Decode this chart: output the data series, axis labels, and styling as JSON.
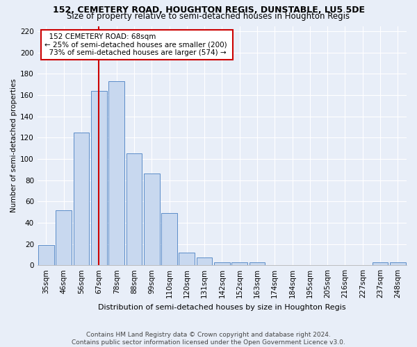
{
  "title1": "152, CEMETERY ROAD, HOUGHTON REGIS, DUNSTABLE, LU5 5DE",
  "title2": "Size of property relative to semi-detached houses in Houghton Regis",
  "xlabel": "Distribution of semi-detached houses by size in Houghton Regis",
  "ylabel": "Number of semi-detached properties",
  "footnote": "Contains HM Land Registry data © Crown copyright and database right 2024.\nContains public sector information licensed under the Open Government Licence v3.0.",
  "bar_labels": [
    "35sqm",
    "46sqm",
    "56sqm",
    "67sqm",
    "78sqm",
    "88sqm",
    "99sqm",
    "110sqm",
    "120sqm",
    "131sqm",
    "142sqm",
    "152sqm",
    "163sqm",
    "174sqm",
    "184sqm",
    "195sqm",
    "205sqm",
    "216sqm",
    "227sqm",
    "237sqm",
    "248sqm"
  ],
  "bar_values": [
    19,
    52,
    125,
    164,
    173,
    105,
    86,
    49,
    12,
    7,
    3,
    3,
    3,
    0,
    0,
    0,
    0,
    0,
    0,
    3,
    3
  ],
  "bar_color": "#c8d8ef",
  "bar_edge_color": "#5b8cc8",
  "property_label": "152 CEMETERY ROAD: 68sqm",
  "smaller_pct": "25% of semi-detached houses are smaller (200)",
  "larger_pct": "73% of semi-detached houses are larger (574)",
  "annotation_box_color": "#ffffff",
  "annotation_box_edge": "#cc0000",
  "vline_color": "#cc0000",
  "vline_bar_index": 3,
  "ylim": [
    0,
    225
  ],
  "yticks": [
    0,
    20,
    40,
    60,
    80,
    100,
    120,
    140,
    160,
    180,
    200,
    220
  ],
  "background_color": "#e8eef8",
  "grid_color": "#ffffff",
  "title1_fontsize": 9,
  "title2_fontsize": 8.5,
  "xlabel_fontsize": 8,
  "ylabel_fontsize": 7.5,
  "tick_fontsize": 7.5,
  "footnote_fontsize": 6.5
}
